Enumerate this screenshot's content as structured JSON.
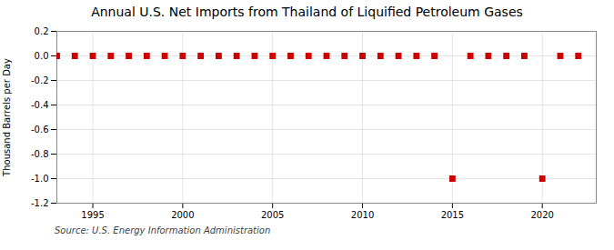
{
  "chart_data": {
    "type": "scatter",
    "title": "Annual U.S. Net Imports from Thailand of Liquified Petroleum Gases",
    "ylabel": "Thousand Barrels per Day",
    "annotation": "Source: U.S. Energy Information Administration",
    "x": [
      1993,
      1994,
      1995,
      1996,
      1997,
      1998,
      1999,
      2000,
      2001,
      2002,
      2003,
      2004,
      2005,
      2006,
      2007,
      2008,
      2009,
      2010,
      2011,
      2012,
      2013,
      2014,
      2015,
      2016,
      2017,
      2018,
      2019,
      2020,
      2021,
      2022
    ],
    "values": [
      0,
      0,
      0,
      0,
      0,
      0,
      0,
      0,
      0,
      0,
      0,
      0,
      0,
      0,
      0,
      0,
      0,
      0,
      0,
      0,
      0,
      0,
      -1,
      0,
      0,
      0,
      0,
      -1,
      0,
      0
    ],
    "color": "#cc0000",
    "marker": "square",
    "xlim": [
      1993,
      2023
    ],
    "xticks": [
      1995,
      2000,
      2005,
      2010,
      2015,
      2020
    ],
    "ylim": [
      -1.2,
      0.2
    ],
    "yticks": [
      0.2,
      {
        "value": 0,
        "label": "0.0"
      },
      -0.2,
      -0.4,
      -0.6,
      -0.8,
      {
        "value": -1,
        "label": "-1.0"
      },
      -1.2
    ],
    "grid": true
  }
}
